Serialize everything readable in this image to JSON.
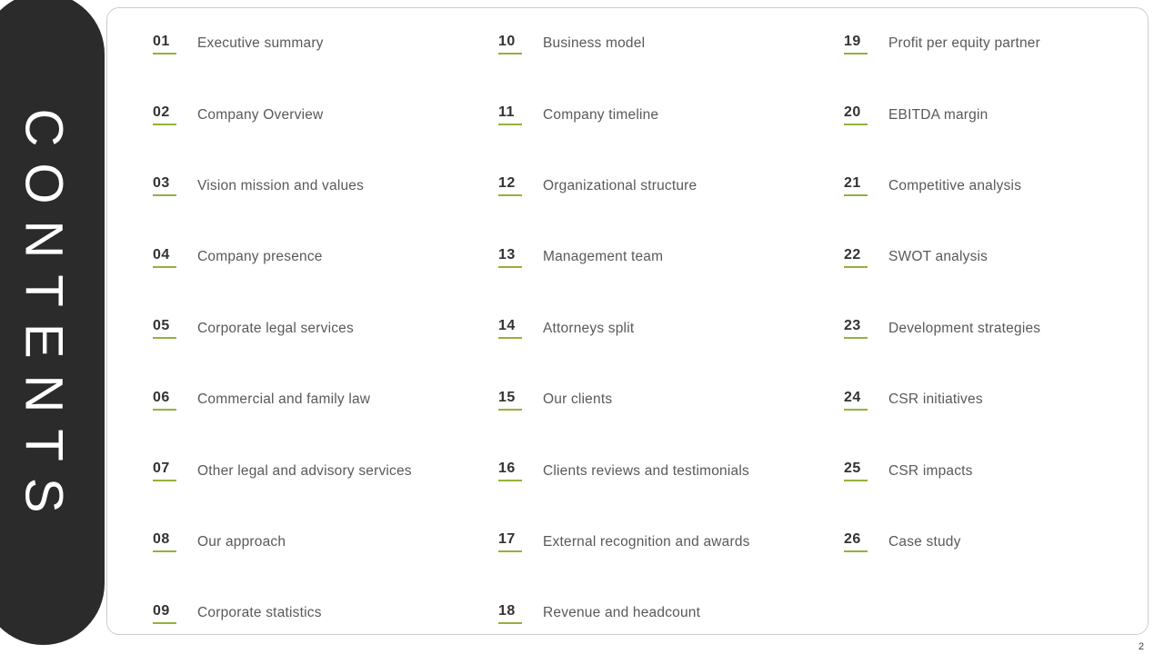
{
  "sidebar": {
    "title": "CONTENTS"
  },
  "page_number": "2",
  "colors": {
    "accent": "#94b13b",
    "sidebar_bg": "#2b2b2b"
  },
  "columns": [
    {
      "items": [
        {
          "number": "01",
          "label": "Executive summary"
        },
        {
          "number": "02",
          "label": "Company Overview"
        },
        {
          "number": "03",
          "label": "Vision mission and values"
        },
        {
          "number": "04",
          "label": "Company presence"
        },
        {
          "number": "05",
          "label": "Corporate legal services"
        },
        {
          "number": "06",
          "label": "Commercial and family law"
        },
        {
          "number": "07",
          "label": "Other legal and advisory services"
        },
        {
          "number": "08",
          "label": "Our approach"
        },
        {
          "number": "09",
          "label": "Corporate statistics"
        }
      ]
    },
    {
      "items": [
        {
          "number": "10",
          "label": "Business model"
        },
        {
          "number": "11",
          "label": "Company timeline"
        },
        {
          "number": "12",
          "label": "Organizational structure"
        },
        {
          "number": "13",
          "label": "Management team"
        },
        {
          "number": "14",
          "label": "Attorneys split"
        },
        {
          "number": "15",
          "label": "Our clients"
        },
        {
          "number": "16",
          "label": "Clients reviews and testimonials"
        },
        {
          "number": "17",
          "label": "External recognition and awards"
        },
        {
          "number": "18",
          "label": "Revenue and headcount"
        }
      ]
    },
    {
      "items": [
        {
          "number": "19",
          "label": "Profit per equity partner"
        },
        {
          "number": "20",
          "label": "EBITDA margin"
        },
        {
          "number": "21",
          "label": "Competitive analysis"
        },
        {
          "number": "22",
          "label": "SWOT analysis"
        },
        {
          "number": "23",
          "label": "Development strategies"
        },
        {
          "number": "24",
          "label": "CSR initiatives"
        },
        {
          "number": "25",
          "label": "CSR impacts"
        },
        {
          "number": "26",
          "label": "Case study"
        }
      ]
    }
  ]
}
